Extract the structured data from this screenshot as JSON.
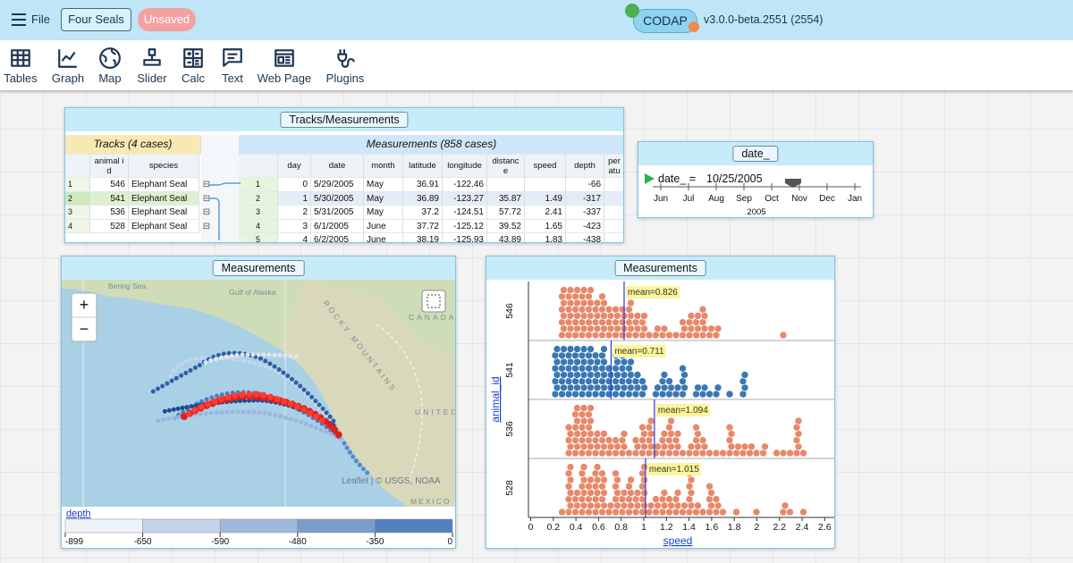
{
  "menu": {
    "file": "File",
    "document": "Four Seals",
    "status": "Unsaved",
    "app": "CODAP",
    "version": "v3.0.0-beta.2551 (2554)"
  },
  "tools": [
    "Tables",
    "Graph",
    "Map",
    "Slider",
    "Calc",
    "Text",
    "Web Page",
    "Plugins"
  ],
  "table": {
    "title": "Tracks/Measurements",
    "parent": {
      "title": "Tracks (4 cases)",
      "columns": [
        "animal id",
        "species"
      ],
      "row_numbers": [
        1,
        2,
        3,
        4
      ],
      "rows": [
        [
          546,
          "Elephant Seal"
        ],
        [
          541,
          "Elephant Seal"
        ],
        [
          536,
          "Elephant Seal"
        ],
        [
          528,
          "Elephant Seal"
        ]
      ]
    },
    "child": {
      "title": "Measurements (858 cases)",
      "columns": [
        "day",
        "date",
        "month",
        "latitude",
        "longitude",
        "distance",
        "speed",
        "depth",
        "temperature"
      ],
      "row_numbers": [
        1,
        2,
        3,
        4,
        5
      ],
      "rows": [
        [
          0,
          "5/29/2005",
          "May",
          36.91,
          -122.46,
          null,
          null,
          -66
        ],
        [
          1,
          "5/30/2005",
          "May",
          36.89,
          -123.27,
          35.87,
          1.49,
          -317
        ],
        [
          2,
          "5/31/2005",
          "May",
          37.2,
          -124.51,
          57.72,
          2.41,
          -337
        ],
        [
          3,
          "6/1/2005",
          "June",
          37.72,
          -125.12,
          39.52,
          1.65,
          -423
        ],
        [
          4,
          "6/2/2005",
          "June",
          38.19,
          -125.93,
          43.89,
          1.83,
          -438
        ]
      ]
    }
  },
  "slider": {
    "title": "date_",
    "label": "date_ =",
    "value": "10/25/2005",
    "months": [
      "Jun",
      "Jul",
      "Aug",
      "Sep",
      "Oct",
      "Nov",
      "Dec",
      "Jan"
    ],
    "year": "2005"
  },
  "map": {
    "title": "Measurements",
    "zoom_in": "+",
    "zoom_out": "−",
    "places": [
      "Bering Sea",
      "Gulf of Alaska",
      "CANADA",
      "ROCKY MOUNTAINS",
      "UNITED STATES",
      "MEXICO"
    ],
    "attribution": "Leaflet | © USGS, NOAA",
    "legend": {
      "attribute": "depth",
      "bins": [
        -899,
        -650,
        -590,
        -480,
        -350,
        0
      ],
      "colors": [
        "#eef3fa",
        "#c5d4ea",
        "#9fb8dc",
        "#7a9ccd",
        "#5280bf"
      ]
    }
  },
  "graph": {
    "title": "Measurements",
    "x_label": "speed",
    "y_label": "animal_id",
    "categories": [
      "546",
      "541",
      "536",
      "528"
    ],
    "colors": [
      "#e8886a",
      "#3a78b5",
      "#e8886a",
      "#e8886a"
    ],
    "means": [
      0.826,
      0.711,
      1.094,
      1.015
    ],
    "mean_labels": [
      "mean=0.826",
      "mean=0.711",
      "mean=1.094",
      "mean=1.015"
    ],
    "xlim": [
      -0.02,
      2.7
    ],
    "xticks": [
      0,
      0.2,
      0.4,
      0.6,
      0.8,
      1,
      1.2,
      1.4,
      1.6,
      1.8,
      2,
      2.2,
      2.4,
      2.6
    ]
  }
}
